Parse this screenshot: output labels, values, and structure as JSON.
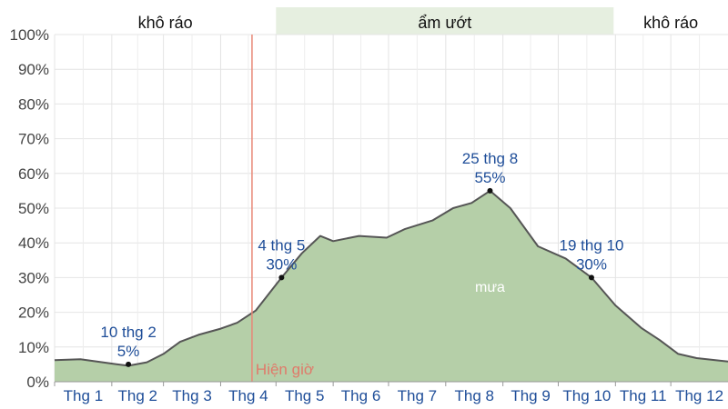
{
  "chart_data": {
    "type": "area",
    "y_ticks": [
      "0%",
      "10%",
      "20%",
      "30%",
      "40%",
      "50%",
      "60%",
      "70%",
      "80%",
      "90%",
      "100%"
    ],
    "ylim": [
      0,
      100
    ],
    "grid": true,
    "x_ticks": [
      {
        "label": "Thg 1",
        "month": 1
      },
      {
        "label": "Thg 2",
        "month": 2
      },
      {
        "label": "Thg 3",
        "month": 3
      },
      {
        "label": "Thg 4",
        "month": 4
      },
      {
        "label": "Thg 5",
        "month": 5
      },
      {
        "label": "Thg 6",
        "month": 6
      },
      {
        "label": "Thg 7",
        "month": 7
      },
      {
        "label": "Thg 8",
        "month": 8
      },
      {
        "label": "Thg 9",
        "month": 9
      },
      {
        "label": "Thg 10",
        "month": 10
      },
      {
        "label": "Thg 11",
        "month": 11
      },
      {
        "label": "Thg 12",
        "month": 12
      }
    ],
    "series": [
      {
        "name": "mưa",
        "color": "#b5cfa8",
        "line_color": "#555555",
        "points": [
          {
            "date": "01-01",
            "value": 6.2
          },
          {
            "date": "01-15",
            "value": 6.5
          },
          {
            "date": "01-31",
            "value": 5.3
          },
          {
            "date": "02-10",
            "value": 4.6
          },
          {
            "date": "02-20",
            "value": 5.6
          },
          {
            "date": "03-01",
            "value": 8
          },
          {
            "date": "03-10",
            "value": 11.5
          },
          {
            "date": "03-20",
            "value": 13.5
          },
          {
            "date": "04-01",
            "value": 15.3
          },
          {
            "date": "04-10",
            "value": 17
          },
          {
            "date": "04-20",
            "value": 20.5
          },
          {
            "date": "05-04",
            "value": 30
          },
          {
            "date": "05-15",
            "value": 37
          },
          {
            "date": "05-25",
            "value": 42
          },
          {
            "date": "06-01",
            "value": 40.5
          },
          {
            "date": "06-15",
            "value": 42
          },
          {
            "date": "06-30",
            "value": 41.5
          },
          {
            "date": "07-10",
            "value": 44
          },
          {
            "date": "07-25",
            "value": 46.5
          },
          {
            "date": "08-05",
            "value": 50
          },
          {
            "date": "08-15",
            "value": 51.5
          },
          {
            "date": "08-25",
            "value": 55
          },
          {
            "date": "09-05",
            "value": 50
          },
          {
            "date": "09-20",
            "value": 39
          },
          {
            "date": "10-05",
            "value": 35.5
          },
          {
            "date": "10-19",
            "value": 30
          },
          {
            "date": "11-01",
            "value": 22
          },
          {
            "date": "11-15",
            "value": 15.5
          },
          {
            "date": "11-25",
            "value": 12
          },
          {
            "date": "12-05",
            "value": 8
          },
          {
            "date": "12-15",
            "value": 6.8
          },
          {
            "date": "12-31",
            "value": 5.8
          }
        ]
      }
    ],
    "annotations": [
      {
        "date": "02-10",
        "value": 5,
        "line1": "10 thg 2",
        "line2": "5%"
      },
      {
        "date": "05-04",
        "value": 30,
        "line1": "4 thg 5",
        "line2": "30%"
      },
      {
        "date": "08-25",
        "value": 55,
        "line1": "25 thg 8",
        "line2": "55%"
      },
      {
        "date": "10-19",
        "value": 30,
        "line1": "19 thg 10",
        "line2": "30%"
      }
    ],
    "now_marker": {
      "date": "04-18",
      "label": "Hiện giờ"
    },
    "seasons": [
      {
        "label": "khô ráo",
        "start": "01-01",
        "end": "05-01",
        "color": "#ffffff"
      },
      {
        "label": "ẩm ướt",
        "start": "05-01",
        "end": "10-31",
        "color": "#e6efe0"
      },
      {
        "label": "khô ráo",
        "start": "10-31",
        "end": "12-31",
        "color": "#ffffff"
      }
    ]
  }
}
